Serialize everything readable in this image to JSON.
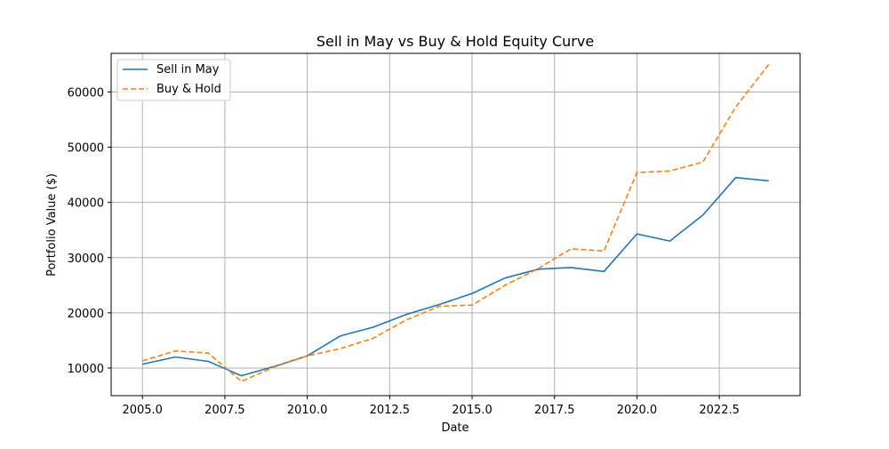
{
  "chart_data": {
    "type": "line",
    "title": "Sell in May vs Buy & Hold Equity Curve",
    "xlabel": "Date",
    "ylabel": "Portfolio Value ($)",
    "xlim": [
      2004.05,
      2024.95
    ],
    "ylim": [
      5000,
      67000
    ],
    "xticks": [
      2005.0,
      2007.5,
      2010.0,
      2012.5,
      2015.0,
      2017.5,
      2020.0,
      2022.5
    ],
    "xtick_labels": [
      "2005.0",
      "2007.5",
      "2010.0",
      "2012.5",
      "2015.0",
      "2017.5",
      "2020.0",
      "2022.5"
    ],
    "yticks": [
      10000,
      20000,
      30000,
      40000,
      50000,
      60000
    ],
    "ytick_labels": [
      "10000",
      "20000",
      "30000",
      "40000",
      "50000",
      "60000"
    ],
    "grid": true,
    "legend_position": "top-left",
    "x": [
      2005,
      2006,
      2007,
      2008,
      2009,
      2010,
      2011,
      2012,
      2013,
      2014,
      2015,
      2016,
      2017,
      2018,
      2019,
      2020,
      2021,
      2022,
      2023,
      2024
    ],
    "series": [
      {
        "name": "Sell in May",
        "color": "#1f77b4",
        "style": "solid",
        "values": [
          10700,
          12000,
          11200,
          8600,
          10300,
          12200,
          15800,
          17400,
          19700,
          21500,
          23500,
          26300,
          27900,
          28200,
          27500,
          34300,
          33000,
          37700,
          44500,
          43900
        ]
      },
      {
        "name": "Buy & Hold",
        "color": "#ff7f0e",
        "style": "dashed",
        "values": [
          11300,
          13100,
          12700,
          7600,
          10200,
          12200,
          13500,
          15400,
          18700,
          21200,
          21400,
          25000,
          28000,
          31600,
          31200,
          45400,
          45700,
          47300,
          57300,
          65000
        ]
      }
    ]
  }
}
